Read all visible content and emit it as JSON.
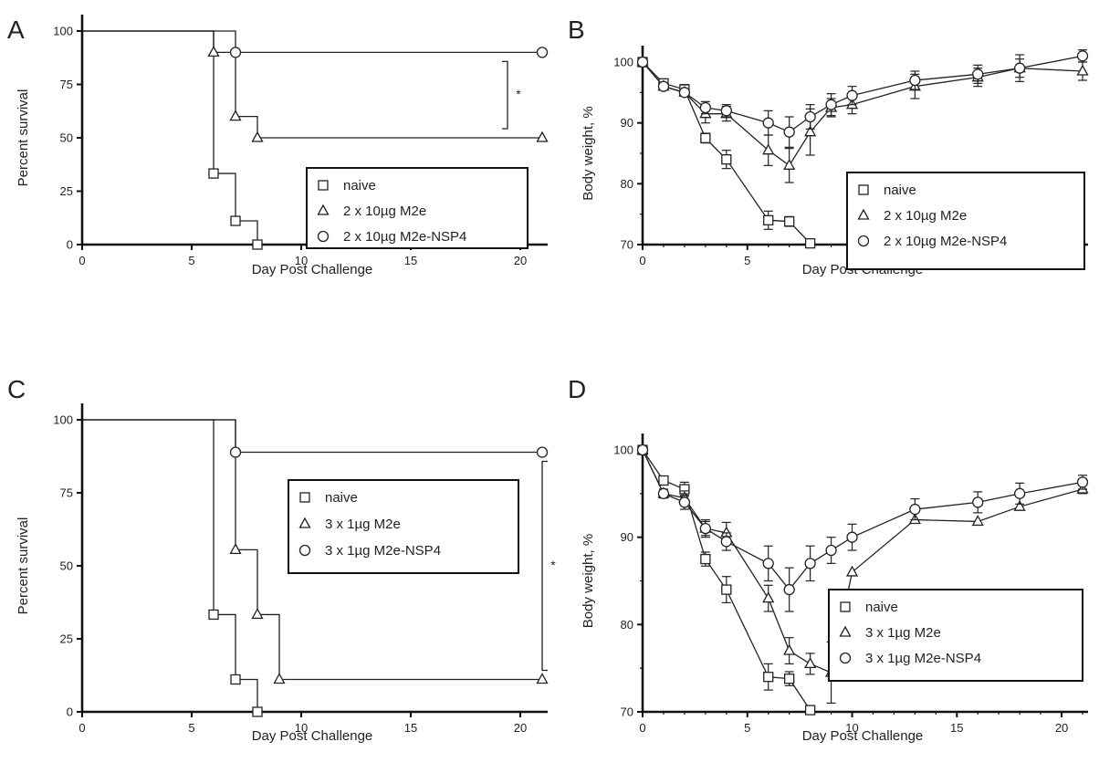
{
  "chart_data": [
    {
      "panel": "A",
      "type": "survival",
      "xlabel": "Day Post Challenge",
      "ylabel": "Percent survival",
      "xlim": [
        0,
        21
      ],
      "ylim": [
        0,
        100
      ],
      "xticks": [
        0,
        5,
        10,
        15,
        20
      ],
      "yticks": [
        0,
        25,
        50,
        75,
        100
      ],
      "legend_position": "center-right",
      "significance": "*",
      "series": [
        {
          "name": "naive",
          "marker": "square",
          "steps": [
            [
              0,
              100
            ],
            [
              6,
              100
            ],
            [
              6,
              33.3
            ],
            [
              7,
              33.3
            ],
            [
              7,
              11.1
            ],
            [
              8,
              11.1
            ],
            [
              8,
              0
            ]
          ],
          "markers": [
            [
              6,
              33.3
            ],
            [
              7,
              11.1
            ],
            [
              8,
              0
            ]
          ]
        },
        {
          "name": "2 x 10µg M2e",
          "marker": "triangle",
          "steps": [
            [
              0,
              100
            ],
            [
              6,
              100
            ],
            [
              6,
              90
            ],
            [
              7,
              90
            ],
            [
              7,
              60
            ],
            [
              8,
              60
            ],
            [
              8,
              50
            ],
            [
              21,
              50
            ]
          ],
          "markers": [
            [
              6,
              90
            ],
            [
              7,
              60
            ],
            [
              8,
              50
            ],
            [
              21,
              50
            ]
          ]
        },
        {
          "name": "2 x 10µg M2e-NSP4",
          "marker": "circle",
          "steps": [
            [
              0,
              100
            ],
            [
              7,
              100
            ],
            [
              7,
              90
            ],
            [
              21,
              90
            ]
          ],
          "markers": [
            [
              7,
              90
            ],
            [
              21,
              90
            ]
          ]
        }
      ]
    },
    {
      "panel": "B",
      "type": "line",
      "xlabel": "Day Post Challenge",
      "ylabel": "Body weight, %",
      "xlim": [
        0,
        21
      ],
      "ylim": [
        70,
        100
      ],
      "xticks": [
        0,
        5,
        10,
        15,
        20
      ],
      "yticks": [
        70,
        80,
        90,
        100
      ],
      "legend_position": "center-right",
      "series": [
        {
          "name": "naive",
          "marker": "square",
          "x": [
            0,
            1,
            2,
            3,
            4,
            6,
            7,
            8
          ],
          "y": [
            100,
            96.5,
            95.5,
            87.5,
            84,
            74,
            73.8,
            70.2
          ],
          "err": [
            0,
            0.5,
            0.8,
            0.8,
            1.5,
            1.5,
            0.8,
            0
          ]
        },
        {
          "name": "2 x 10µg M2e",
          "marker": "triangle",
          "x": [
            0,
            1,
            2,
            3,
            4,
            6,
            7,
            8,
            9,
            10,
            13,
            16,
            18,
            21
          ],
          "y": [
            100,
            96,
            95,
            91.5,
            91.5,
            85.5,
            83,
            88.5,
            92.5,
            93,
            96,
            97.5,
            99,
            98.5
          ],
          "err": [
            0,
            0.5,
            0.5,
            1.5,
            1.2,
            2.5,
            2.8,
            3.8,
            1.5,
            1.5,
            2,
            1.5,
            1.5,
            1.5
          ]
        },
        {
          "name": "2 x 10µg M2e-NSP4",
          "marker": "circle",
          "x": [
            0,
            1,
            2,
            3,
            4,
            6,
            7,
            8,
            9,
            10,
            13,
            16,
            18,
            21
          ],
          "y": [
            100,
            96,
            95,
            92.5,
            92,
            90,
            88.5,
            91,
            93,
            94.5,
            97,
            98,
            99,
            101
          ],
          "err": [
            0,
            0.5,
            0.5,
            1,
            1,
            2,
            2.5,
            2,
            1.8,
            1.5,
            1.5,
            1.5,
            2.2,
            1
          ]
        }
      ]
    },
    {
      "panel": "C",
      "type": "survival",
      "xlabel": "Day Post Challenge",
      "ylabel": "Percent survival",
      "xlim": [
        0,
        21
      ],
      "ylim": [
        0,
        100
      ],
      "xticks": [
        0,
        5,
        10,
        15,
        20
      ],
      "yticks": [
        0,
        25,
        50,
        75,
        100
      ],
      "legend_position": "center-right",
      "significance": "*",
      "series": [
        {
          "name": "naive",
          "marker": "square",
          "steps": [
            [
              0,
              100
            ],
            [
              6,
              100
            ],
            [
              6,
              33.3
            ],
            [
              7,
              33.3
            ],
            [
              7,
              11.1
            ],
            [
              8,
              11.1
            ],
            [
              8,
              0
            ]
          ],
          "markers": [
            [
              6,
              33.3
            ],
            [
              7,
              11.1
            ],
            [
              8,
              0
            ]
          ]
        },
        {
          "name": "3 x 1µg M2e",
          "marker": "triangle",
          "steps": [
            [
              0,
              100
            ],
            [
              7,
              100
            ],
            [
              7,
              55.5
            ],
            [
              8,
              55.5
            ],
            [
              8,
              33.3
            ],
            [
              9,
              33.3
            ],
            [
              9,
              11.1
            ],
            [
              21,
              11.1
            ]
          ],
          "markers": [
            [
              7,
              55.5
            ],
            [
              8,
              33.3
            ],
            [
              9,
              11.1
            ],
            [
              21,
              11.1
            ]
          ]
        },
        {
          "name": "3 x 1µg M2e-NSP4",
          "marker": "circle",
          "steps": [
            [
              0,
              100
            ],
            [
              7,
              100
            ],
            [
              7,
              88.9
            ],
            [
              21,
              88.9
            ]
          ],
          "markers": [
            [
              7,
              88.9
            ],
            [
              21,
              88.9
            ]
          ]
        }
      ]
    },
    {
      "panel": "D",
      "type": "line",
      "xlabel": "Day Post Challenge",
      "ylabel": "Body weight, %",
      "xlim": [
        0,
        21
      ],
      "ylim": [
        70,
        100
      ],
      "xticks": [
        0,
        5,
        10,
        15,
        20
      ],
      "yticks": [
        70,
        80,
        90,
        100
      ],
      "legend_position": "bottom-right",
      "series": [
        {
          "name": "naive",
          "marker": "square",
          "x": [
            0,
            1,
            2,
            3,
            4,
            6,
            7,
            8
          ],
          "y": [
            100,
            96.5,
            95.5,
            87.5,
            84,
            74,
            73.8,
            70.2
          ],
          "err": [
            0,
            0.5,
            0.8,
            0.8,
            1.5,
            1.5,
            0.8,
            0
          ]
        },
        {
          "name": "3 x 1µg M2e",
          "marker": "triangle",
          "x": [
            0,
            1,
            2,
            3,
            4,
            6,
            7,
            8,
            9,
            10,
            13,
            16,
            18,
            21
          ],
          "y": [
            100,
            95,
            94.5,
            91,
            90.5,
            83,
            77,
            75.5,
            74.5,
            86,
            92,
            91.8,
            93.5,
            95.5
          ],
          "err": [
            0,
            0.5,
            0.8,
            0.8,
            1.2,
            1.5,
            1.5,
            1.2,
            3.5,
            0,
            0,
            0,
            0,
            0.5
          ]
        },
        {
          "name": "3 x 1µg M2e-NSP4",
          "marker": "circle",
          "x": [
            0,
            1,
            2,
            3,
            4,
            6,
            7,
            8,
            9,
            10,
            13,
            16,
            18,
            21
          ],
          "y": [
            100,
            95,
            94,
            91,
            89.5,
            87,
            84,
            87,
            88.5,
            90,
            93.2,
            94,
            95,
            96.3
          ],
          "err": [
            0,
            0.5,
            0.8,
            1,
            1,
            2,
            2.5,
            2,
            1.5,
            1.5,
            1.2,
            1.2,
            1.2,
            0.8
          ]
        }
      ]
    }
  ]
}
